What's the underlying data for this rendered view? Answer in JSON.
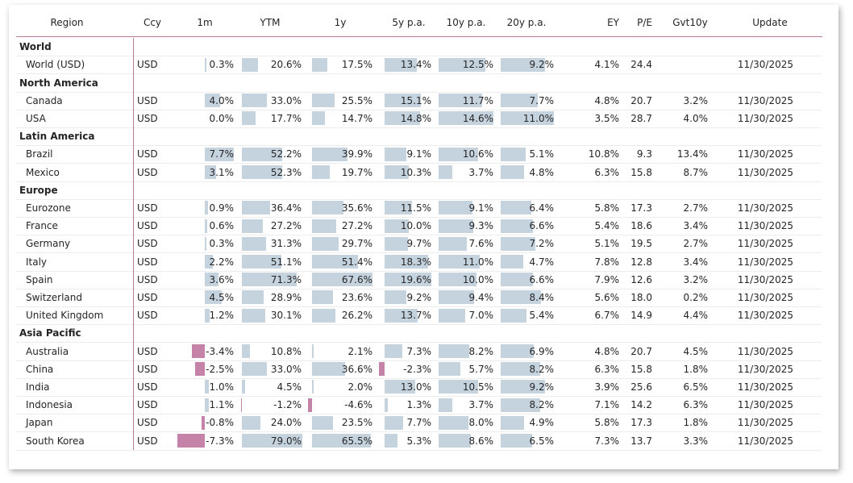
{
  "colors": {
    "positive_bar": "#c5d3df",
    "negative_bar": "#c683a9",
    "accent_rule": "#b67a9c",
    "grid_line": "#ececec"
  },
  "headers": [
    "Region",
    "Ccy",
    "1m",
    "YTM",
    "1y",
    "5y p.a.",
    "10y p.a.",
    "20y p.a.",
    "EY",
    "P/E",
    "Gvt10y",
    "Update"
  ],
  "rows": [
    {
      "type": "group",
      "label": "World"
    },
    {
      "type": "data",
      "region": "World (USD)",
      "ccy": "USD",
      "m1": "0.3%",
      "ytm": "20.6%",
      "y1": "17.5%",
      "y5": "13.4%",
      "y10": "12.5%",
      "y20": "9.2%",
      "ey": "4.1%",
      "pe": "24.4",
      "gvt": "",
      "update": "11/30/2025"
    },
    {
      "type": "group",
      "label": "North America"
    },
    {
      "type": "data",
      "region": "Canada",
      "ccy": "USD",
      "m1": "4.0%",
      "ytm": "33.0%",
      "y1": "25.5%",
      "y5": "15.1%",
      "y10": "11.7%",
      "y20": "7.7%",
      "ey": "4.8%",
      "pe": "20.7",
      "gvt": "3.2%",
      "update": "11/30/2025"
    },
    {
      "type": "data",
      "region": "USA",
      "ccy": "USD",
      "m1": "0.0%",
      "ytm": "17.7%",
      "y1": "14.7%",
      "y5": "14.8%",
      "y10": "14.6%",
      "y20": "11.0%",
      "ey": "3.5%",
      "pe": "28.7",
      "gvt": "4.0%",
      "update": "11/30/2025"
    },
    {
      "type": "group",
      "label": "Latin America"
    },
    {
      "type": "data",
      "region": "Brazil",
      "ccy": "USD",
      "m1": "7.7%",
      "ytm": "52.2%",
      "y1": "39.9%",
      "y5": "9.1%",
      "y10": "10.6%",
      "y20": "5.1%",
      "ey": "10.8%",
      "pe": "9.3",
      "gvt": "13.4%",
      "update": "11/30/2025"
    },
    {
      "type": "data",
      "region": "Mexico",
      "ccy": "USD",
      "m1": "3.1%",
      "ytm": "52.3%",
      "y1": "19.7%",
      "y5": "10.3%",
      "y10": "3.7%",
      "y20": "4.8%",
      "ey": "6.3%",
      "pe": "15.8",
      "gvt": "8.7%",
      "update": "11/30/2025"
    },
    {
      "type": "group",
      "label": "Europe"
    },
    {
      "type": "data",
      "region": "Eurozone",
      "ccy": "USD",
      "m1": "0.9%",
      "ytm": "36.4%",
      "y1": "35.6%",
      "y5": "11.5%",
      "y10": "9.1%",
      "y20": "6.4%",
      "ey": "5.8%",
      "pe": "17.3",
      "gvt": "2.7%",
      "update": "11/30/2025"
    },
    {
      "type": "data",
      "region": "France",
      "ccy": "USD",
      "m1": "0.6%",
      "ytm": "27.2%",
      "y1": "27.2%",
      "y5": "10.0%",
      "y10": "9.3%",
      "y20": "6.6%",
      "ey": "5.4%",
      "pe": "18.6",
      "gvt": "3.4%",
      "update": "11/30/2025"
    },
    {
      "type": "data",
      "region": "Germany",
      "ccy": "USD",
      "m1": "0.3%",
      "ytm": "31.3%",
      "y1": "29.7%",
      "y5": "9.7%",
      "y10": "7.6%",
      "y20": "7.2%",
      "ey": "5.1%",
      "pe": "19.5",
      "gvt": "2.7%",
      "update": "11/30/2025"
    },
    {
      "type": "data",
      "region": "Italy",
      "ccy": "USD",
      "m1": "2.2%",
      "ytm": "51.1%",
      "y1": "51.4%",
      "y5": "18.3%",
      "y10": "11.0%",
      "y20": "4.7%",
      "ey": "7.8%",
      "pe": "12.8",
      "gvt": "3.4%",
      "update": "11/30/2025"
    },
    {
      "type": "data",
      "region": "Spain",
      "ccy": "USD",
      "m1": "3.6%",
      "ytm": "71.3%",
      "y1": "67.6%",
      "y5": "19.6%",
      "y10": "10.0%",
      "y20": "6.6%",
      "ey": "7.9%",
      "pe": "12.6",
      "gvt": "3.2%",
      "update": "11/30/2025"
    },
    {
      "type": "data",
      "region": "Switzerland",
      "ccy": "USD",
      "m1": "4.5%",
      "ytm": "28.9%",
      "y1": "23.6%",
      "y5": "9.2%",
      "y10": "9.4%",
      "y20": "8.4%",
      "ey": "5.6%",
      "pe": "18.0",
      "gvt": "0.2%",
      "update": "11/30/2025"
    },
    {
      "type": "data",
      "region": "United Kingdom",
      "ccy": "USD",
      "m1": "1.2%",
      "ytm": "30.1%",
      "y1": "26.2%",
      "y5": "13.7%",
      "y10": "7.0%",
      "y20": "5.4%",
      "ey": "6.7%",
      "pe": "14.9",
      "gvt": "4.4%",
      "update": "11/30/2025"
    },
    {
      "type": "group",
      "label": "Asia Pacific"
    },
    {
      "type": "data",
      "region": "Australia",
      "ccy": "USD",
      "m1": "-3.4%",
      "ytm": "10.8%",
      "y1": "2.1%",
      "y5": "7.3%",
      "y10": "8.2%",
      "y20": "6.9%",
      "ey": "4.8%",
      "pe": "20.7",
      "gvt": "4.5%",
      "update": "11/30/2025"
    },
    {
      "type": "data",
      "region": "China",
      "ccy": "USD",
      "m1": "-2.5%",
      "ytm": "33.0%",
      "y1": "36.6%",
      "y5": "-2.3%",
      "y10": "5.7%",
      "y20": "8.2%",
      "ey": "6.3%",
      "pe": "15.8",
      "gvt": "1.8%",
      "update": "11/30/2025"
    },
    {
      "type": "data",
      "region": "India",
      "ccy": "USD",
      "m1": "1.0%",
      "ytm": "4.5%",
      "y1": "2.0%",
      "y5": "13.0%",
      "y10": "10.5%",
      "y20": "9.2%",
      "ey": "3.9%",
      "pe": "25.6",
      "gvt": "6.5%",
      "update": "11/30/2025"
    },
    {
      "type": "data",
      "region": "Indonesia",
      "ccy": "USD",
      "m1": "1.1%",
      "ytm": "-1.2%",
      "y1": "-4.6%",
      "y5": "1.3%",
      "y10": "3.7%",
      "y20": "8.2%",
      "ey": "7.1%",
      "pe": "14.2",
      "gvt": "6.3%",
      "update": "11/30/2025"
    },
    {
      "type": "data",
      "region": "Japan",
      "ccy": "USD",
      "m1": "-0.8%",
      "ytm": "24.0%",
      "y1": "23.5%",
      "y5": "7.7%",
      "y10": "8.0%",
      "y20": "4.9%",
      "ey": "5.8%",
      "pe": "17.3",
      "gvt": "1.8%",
      "update": "11/30/2025"
    },
    {
      "type": "data",
      "region": "South Korea",
      "ccy": "USD",
      "m1": "-7.3%",
      "ytm": "79.0%",
      "y1": "65.5%",
      "y5": "5.3%",
      "y10": "8.6%",
      "y20": "6.5%",
      "ey": "7.3%",
      "pe": "13.7",
      "gvt": "3.3%",
      "update": "11/30/2025"
    }
  ]
}
